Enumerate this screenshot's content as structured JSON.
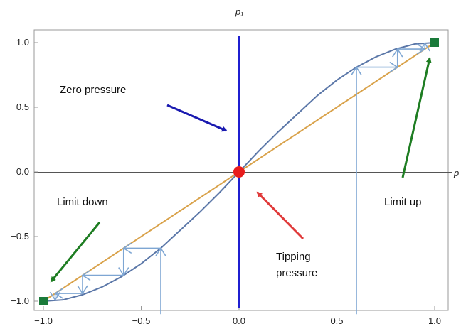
{
  "colors": {
    "curve": "#5b77a8",
    "diagonal": "#d9a24a",
    "zero_line": "#1f1fd0",
    "blue_arrow": "#1a1ab0",
    "red_arrow": "#e03a3a",
    "green_arrow": "#1e7d22",
    "cobweb": "#7ea6d3",
    "endpoint": "#1a7a3a",
    "tipping_point": "#e81c1c",
    "axis": "#555555",
    "frame": "#999999"
  },
  "chart_data": {
    "type": "line",
    "title": "",
    "xlabel": "p",
    "ylabel": "p₁",
    "xlim": [
      -1.0,
      1.0
    ],
    "ylim": [
      -1.0,
      1.0
    ],
    "x_ticks": [
      "-1.0",
      "-0.5",
      "0.0",
      "0.5",
      "1.0"
    ],
    "y_ticks": [
      "-1.0",
      "-0.5",
      "0.0",
      "0.5",
      "1.0"
    ],
    "grid": false,
    "series": [
      {
        "x": [
          -1.0,
          -0.9,
          -0.8,
          -0.7,
          -0.6,
          -0.5,
          -0.4,
          -0.3,
          -0.2,
          -0.1,
          0.0,
          0.1,
          0.2,
          0.3,
          0.4,
          0.5,
          0.6,
          0.7,
          0.8,
          0.9,
          1.0
        ],
        "y": [
          -1.0,
          -0.99,
          -0.95,
          -0.89,
          -0.81,
          -0.71,
          -0.59,
          -0.45,
          -0.31,
          -0.16,
          0.0,
          0.16,
          0.31,
          0.45,
          0.59,
          0.71,
          0.81,
          0.89,
          0.95,
          0.99,
          1.0
        ]
      },
      {
        "x": [
          -1.0,
          1.0
        ],
        "y": [
          -1.0,
          1.0
        ]
      },
      {
        "x": [
          0.0,
          0.0
        ],
        "y": [
          -1.05,
          1.05
        ]
      }
    ],
    "cobweb": [
      [
        0.6,
        -1.1
      ],
      [
        0.6,
        0.81
      ],
      [
        0.81,
        0.81
      ],
      [
        0.81,
        0.95
      ],
      [
        0.95,
        0.95
      ],
      [
        0.95,
        0.995
      ],
      [
        -0.4,
        -1.1
      ],
      [
        -0.4,
        -0.59
      ],
      [
        -0.59,
        -0.59
      ],
      [
        -0.59,
        -0.8
      ],
      [
        -0.8,
        -0.8
      ],
      [
        -0.8,
        -0.94
      ],
      [
        -0.94,
        -0.94
      ],
      [
        -0.94,
        -0.99
      ]
    ],
    "points": [
      {
        "label": "tipping",
        "x": 0.0,
        "y": 0.0
      },
      {
        "label": "limit-up",
        "x": 1.0,
        "y": 1.0
      },
      {
        "label": "limit-down",
        "x": -1.0,
        "y": -1.0
      }
    ],
    "annotations": [
      {
        "text": "Zero pressure"
      },
      {
        "text": "Limit down"
      },
      {
        "text": "Limit up"
      },
      {
        "text_lines": [
          "Tipping",
          "pressure"
        ]
      }
    ]
  }
}
